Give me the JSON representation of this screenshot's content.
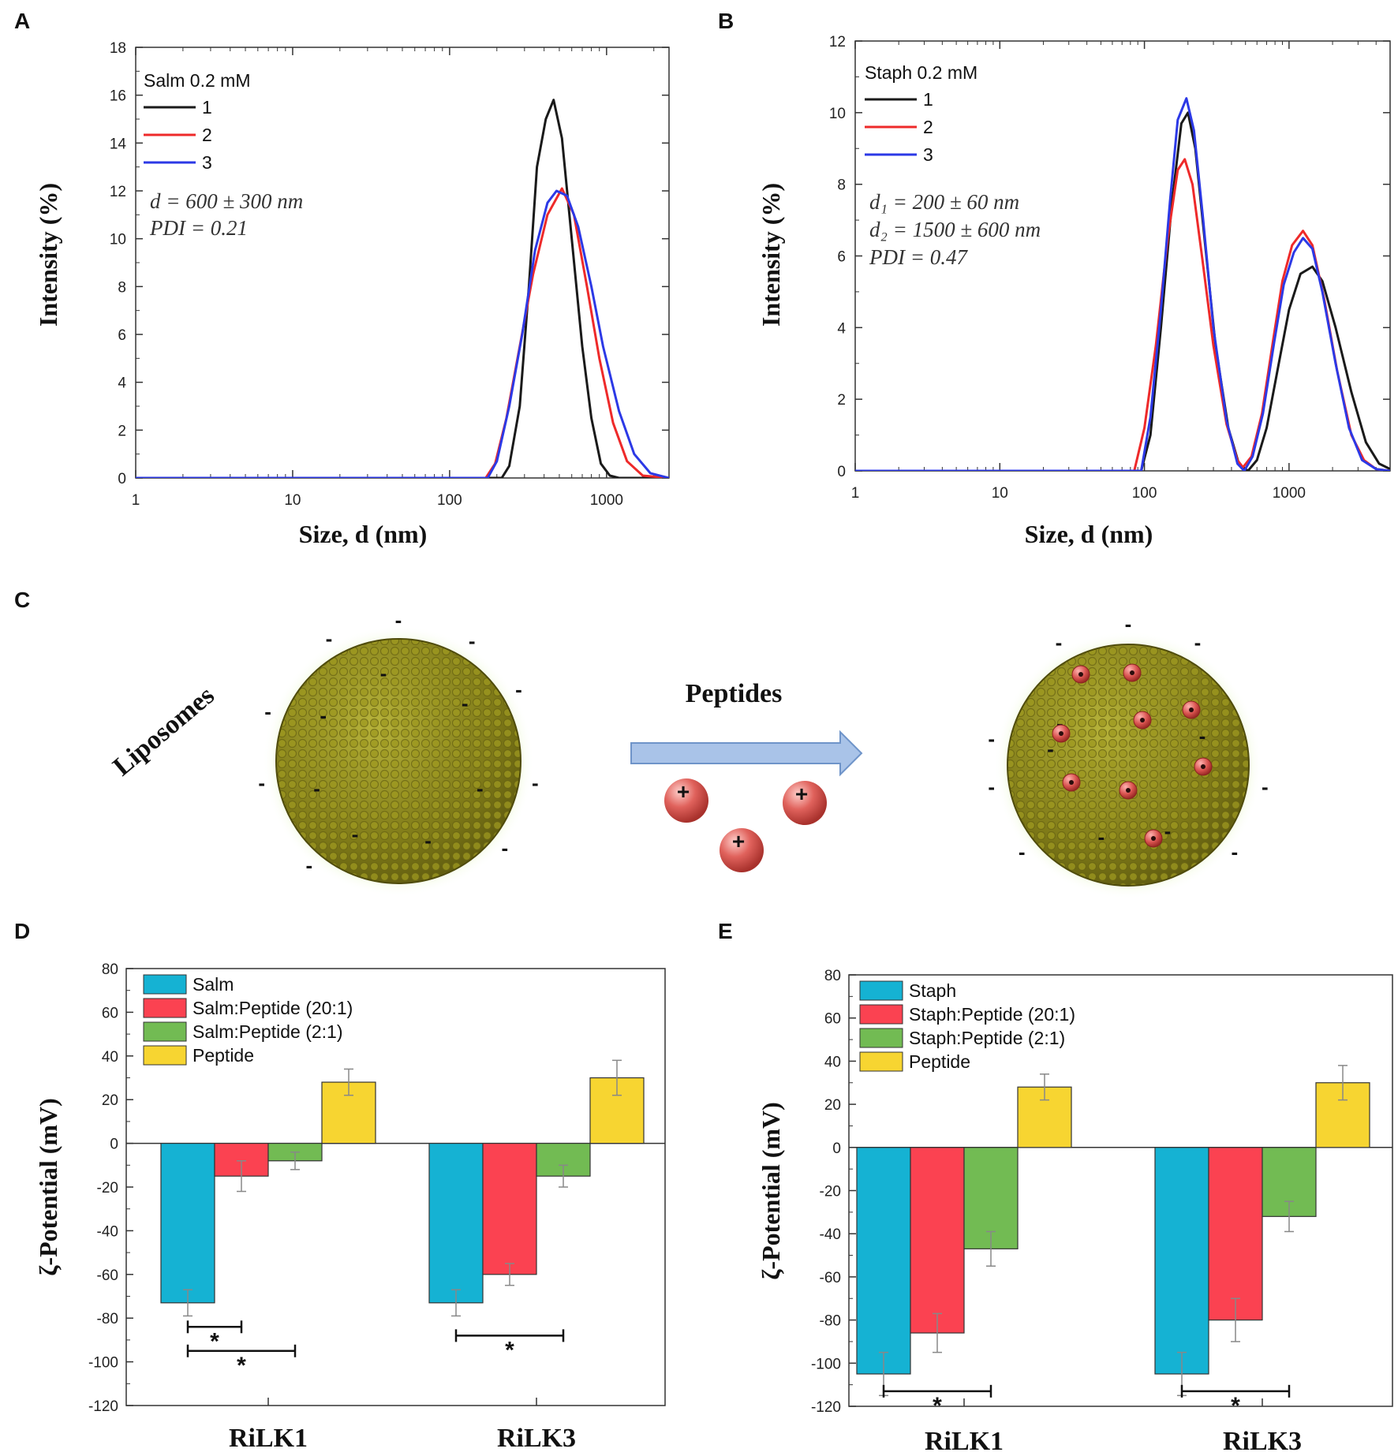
{
  "panels": {
    "a": "A",
    "b": "B",
    "c": "C",
    "d": "D",
    "e": "E"
  },
  "diagram": {
    "left_label": "Liposomes",
    "arrow_label": "Peptides",
    "charge_plus": "+",
    "charge_minus": "-"
  },
  "colors": {
    "black": "#1a1a1a",
    "red": "#ee2a2a",
    "blue": "#2c39e6",
    "cyan": "#15b2d3",
    "bar_red": "#fb4251",
    "green": "#72bb53",
    "yellow": "#f7d531",
    "liposome": "#8f8a1e",
    "halo": "#d9f2a5",
    "peptide": "#d9534f",
    "arrow": "#a9c3e8"
  },
  "chart_data": [
    {
      "id": "A",
      "type": "line",
      "xscale": "log",
      "xlim": [
        1,
        2500
      ],
      "ylim": [
        0,
        18
      ],
      "xticks": [
        1,
        10,
        100,
        1000
      ],
      "xtick_labels": [
        "1",
        "10",
        "100",
        "1000"
      ],
      "yticks": [
        0,
        2,
        4,
        6,
        8,
        10,
        12,
        14,
        16,
        18
      ],
      "ytick_labels": [
        "0",
        "2",
        "4",
        "6",
        "8",
        "10",
        "12",
        "14",
        "16",
        "18"
      ],
      "xlabel": "Size, d (nm)",
      "ylabel": "Intensity (%)",
      "legend_title": "Salm 0.2 mM",
      "annotations": [
        "d = 600 ± 300 nm",
        "PDI = 0.21"
      ],
      "series": [
        {
          "name": "1",
          "color": "#1a1a1a",
          "points": [
            [
              1,
              0
            ],
            [
              215,
              0
            ],
            [
              240,
              0.5
            ],
            [
              280,
              3
            ],
            [
              320,
              8
            ],
            [
              360,
              13
            ],
            [
              410,
              15
            ],
            [
              460,
              15.8
            ],
            [
              520,
              14.2
            ],
            [
              600,
              10
            ],
            [
              700,
              5.5
            ],
            [
              800,
              2.5
            ],
            [
              920,
              0.6
            ],
            [
              1050,
              0.1
            ],
            [
              1200,
              0
            ],
            [
              2500,
              0
            ]
          ]
        },
        {
          "name": "2",
          "color": "#ee2a2a",
          "points": [
            [
              1,
              0
            ],
            [
              170,
              0
            ],
            [
              195,
              0.6
            ],
            [
              230,
              2.5
            ],
            [
              280,
              5.5
            ],
            [
              340,
              8.5
            ],
            [
              420,
              11
            ],
            [
              520,
              12.1
            ],
            [
              620,
              11
            ],
            [
              750,
              8
            ],
            [
              900,
              5
            ],
            [
              1100,
              2.3
            ],
            [
              1350,
              0.7
            ],
            [
              1700,
              0.1
            ],
            [
              2500,
              0
            ]
          ]
        },
        {
          "name": "3",
          "color": "#2c39e6",
          "points": [
            [
              1,
              0
            ],
            [
              175,
              0
            ],
            [
              200,
              0.7
            ],
            [
              240,
              3
            ],
            [
              290,
              6
            ],
            [
              350,
              9.5
            ],
            [
              420,
              11.5
            ],
            [
              480,
              12
            ],
            [
              560,
              11.8
            ],
            [
              660,
              10.5
            ],
            [
              800,
              8
            ],
            [
              950,
              5.5
            ],
            [
              1200,
              2.8
            ],
            [
              1500,
              1
            ],
            [
              1900,
              0.2
            ],
            [
              2500,
              0
            ]
          ]
        }
      ]
    },
    {
      "id": "B",
      "type": "line",
      "xscale": "log",
      "xlim": [
        1,
        5000
      ],
      "ylim": [
        0,
        12
      ],
      "xticks": [
        1,
        10,
        100,
        1000
      ],
      "xtick_labels": [
        "1",
        "10",
        "100",
        "1000"
      ],
      "yticks": [
        0,
        2,
        4,
        6,
        8,
        10,
        12
      ],
      "ytick_labels": [
        "0",
        "2",
        "4",
        "6",
        "8",
        "10",
        "12"
      ],
      "xlabel": "Size, d (nm)",
      "ylabel": "Intensity (%)",
      "legend_title": "Staph 0.2 mM",
      "annotations": [
        "d₁ = 200 ± 60 nm",
        "d₂ = 1500 ± 600 nm",
        "PDI = 0.47"
      ],
      "series": [
        {
          "name": "1",
          "color": "#1a1a1a",
          "points": [
            [
              1,
              0
            ],
            [
              95,
              0
            ],
            [
              110,
              1
            ],
            [
              130,
              4
            ],
            [
              155,
              7.5
            ],
            [
              180,
              9.7
            ],
            [
              200,
              10
            ],
            [
              225,
              9
            ],
            [
              260,
              6.5
            ],
            [
              310,
              3.5
            ],
            [
              380,
              1.2
            ],
            [
              450,
              0.2
            ],
            [
              520,
              0
            ],
            [
              600,
              0.3
            ],
            [
              700,
              1.2
            ],
            [
              850,
              3
            ],
            [
              1000,
              4.5
            ],
            [
              1200,
              5.5
            ],
            [
              1450,
              5.7
            ],
            [
              1700,
              5.3
            ],
            [
              2100,
              4
            ],
            [
              2700,
              2.2
            ],
            [
              3400,
              0.8
            ],
            [
              4200,
              0.2
            ],
            [
              5000,
              0.05
            ]
          ]
        },
        {
          "name": "2",
          "color": "#ee2a2a",
          "points": [
            [
              1,
              0
            ],
            [
              85,
              0
            ],
            [
              100,
              1.2
            ],
            [
              120,
              3.5
            ],
            [
              145,
              6.5
            ],
            [
              170,
              8.4
            ],
            [
              190,
              8.7
            ],
            [
              215,
              8
            ],
            [
              250,
              6
            ],
            [
              300,
              3.5
            ],
            [
              370,
              1.3
            ],
            [
              440,
              0.3
            ],
            [
              480,
              0.1
            ],
            [
              550,
              0.4
            ],
            [
              650,
              1.6
            ],
            [
              780,
              3.7
            ],
            [
              900,
              5.3
            ],
            [
              1050,
              6.3
            ],
            [
              1250,
              6.7
            ],
            [
              1450,
              6.3
            ],
            [
              1750,
              4.8
            ],
            [
              2150,
              2.8
            ],
            [
              2700,
              1
            ],
            [
              3300,
              0.3
            ],
            [
              4000,
              0.05
            ],
            [
              5000,
              0
            ]
          ]
        },
        {
          "name": "3",
          "color": "#2c39e6",
          "points": [
            [
              1,
              0
            ],
            [
              95,
              0
            ],
            [
              110,
              1.5
            ],
            [
              130,
              4.5
            ],
            [
              150,
              7.5
            ],
            [
              170,
              9.8
            ],
            [
              195,
              10.4
            ],
            [
              220,
              9.5
            ],
            [
              255,
              7
            ],
            [
              300,
              4
            ],
            [
              370,
              1.4
            ],
            [
              440,
              0.2
            ],
            [
              490,
              0
            ],
            [
              560,
              0.4
            ],
            [
              660,
              1.6
            ],
            [
              790,
              3.6
            ],
            [
              920,
              5.2
            ],
            [
              1080,
              6.1
            ],
            [
              1250,
              6.5
            ],
            [
              1450,
              6.2
            ],
            [
              1700,
              5
            ],
            [
              2100,
              3
            ],
            [
              2600,
              1.2
            ],
            [
              3200,
              0.3
            ],
            [
              4000,
              0.05
            ],
            [
              5000,
              0
            ]
          ]
        }
      ]
    },
    {
      "id": "D",
      "type": "bar",
      "categories": [
        "RiLK1",
        "RiLK3"
      ],
      "ylim": [
        -120,
        80
      ],
      "yticks": [
        -120,
        -100,
        -80,
        -60,
        -40,
        -20,
        0,
        20,
        40,
        60,
        80
      ],
      "ytick_labels": [
        "-120",
        "-100",
        "-80",
        "-60",
        "-40",
        "-20",
        "0",
        "20",
        "40",
        "60",
        "80"
      ],
      "ylabel": "ζ-Potential (mV)",
      "series": [
        {
          "name": "Salm",
          "color": "#15b2d3",
          "values": [
            -73,
            -73
          ],
          "errors": [
            6,
            6
          ]
        },
        {
          "name": "Salm:Peptide (20:1)",
          "color": "#fb4251",
          "values": [
            -15,
            -60
          ],
          "errors": [
            7,
            5
          ]
        },
        {
          "name": "Salm:Peptide (2:1)",
          "color": "#72bb53",
          "values": [
            -8,
            -15
          ],
          "errors": [
            4,
            5
          ]
        },
        {
          "name": "Peptide",
          "color": "#f7d531",
          "values": [
            28,
            30
          ],
          "errors": [
            6,
            8
          ]
        }
      ],
      "significance": [
        {
          "cat": 0,
          "from": 0,
          "to": 1,
          "y": -84,
          "label": "*"
        },
        {
          "cat": 0,
          "from": 0,
          "to": 2,
          "y": -95,
          "label": "*"
        },
        {
          "cat": 1,
          "from": 0,
          "to": 2,
          "y": -88,
          "label": "*"
        }
      ]
    },
    {
      "id": "E",
      "type": "bar",
      "categories": [
        "RiLK1",
        "RiLK3"
      ],
      "ylim": [
        -120,
        80
      ],
      "yticks": [
        -120,
        -100,
        -80,
        -60,
        -40,
        -20,
        0,
        20,
        40,
        60,
        80
      ],
      "ytick_labels": [
        "-120",
        "-100",
        "-80",
        "-60",
        "-40",
        "-20",
        "0",
        "20",
        "40",
        "60",
        "80"
      ],
      "ylabel": "ζ-Potential (mV)",
      "series": [
        {
          "name": "Staph",
          "color": "#15b2d3",
          "values": [
            -105,
            -105
          ],
          "errors": [
            10,
            10
          ]
        },
        {
          "name": "Staph:Peptide (20:1)",
          "color": "#fb4251",
          "values": [
            -86,
            -80
          ],
          "errors": [
            9,
            10
          ]
        },
        {
          "name": "Staph:Peptide (2:1)",
          "color": "#72bb53",
          "values": [
            -47,
            -32
          ],
          "errors": [
            8,
            7
          ]
        },
        {
          "name": "Peptide",
          "color": "#f7d531",
          "values": [
            28,
            30
          ],
          "errors": [
            6,
            8
          ]
        }
      ],
      "significance": [
        {
          "cat": 0,
          "from": 0,
          "to": 2,
          "y": -113,
          "label": "*"
        },
        {
          "cat": 1,
          "from": 0,
          "to": 2,
          "y": -113,
          "label": "*"
        }
      ]
    }
  ]
}
